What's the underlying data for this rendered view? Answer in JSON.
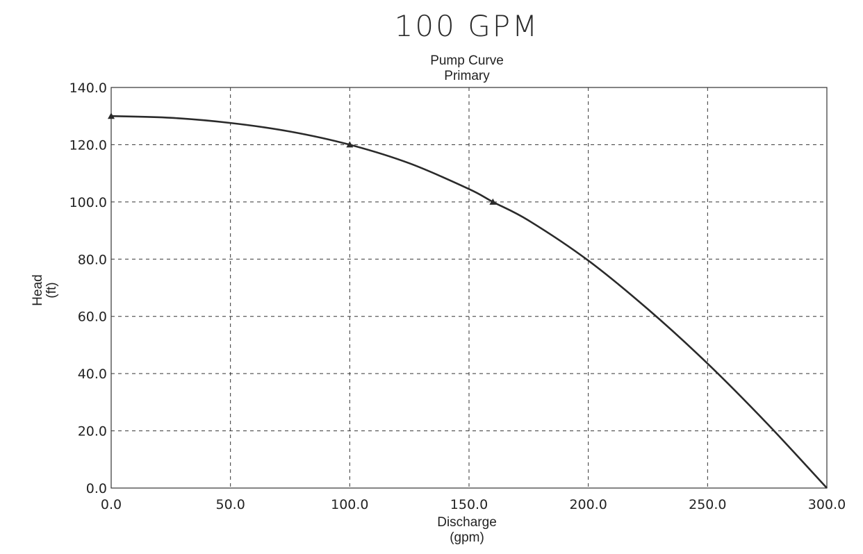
{
  "annotation": "100 GPM",
  "chart_data": {
    "type": "line",
    "title": "Pump Curve",
    "subtitle": "Primary",
    "xlabel": "Discharge",
    "xunit": "(gpm)",
    "ylabel": "Head",
    "yunit": "(ft)",
    "xlim": [
      0,
      300
    ],
    "ylim": [
      0,
      140
    ],
    "xticks": [
      "0.0",
      "50.0",
      "100.0",
      "150.0",
      "200.0",
      "250.0",
      "300.0"
    ],
    "yticks": [
      "0.0",
      "20.0",
      "40.0",
      "60.0",
      "80.0",
      "100.0",
      "120.0",
      "140.0"
    ],
    "grid": true,
    "x": [
      0,
      25,
      50,
      75,
      100,
      125,
      150,
      160,
      175,
      200,
      225,
      250,
      275,
      300
    ],
    "y": [
      130,
      129.4,
      127.6,
      124.6,
      120,
      113.5,
      104.5,
      100,
      93.5,
      79.5,
      62.5,
      43.5,
      22.5,
      0
    ],
    "markers": [
      {
        "x": 0,
        "y": 130
      },
      {
        "x": 100,
        "y": 120
      },
      {
        "x": 160,
        "y": 100
      }
    ]
  }
}
